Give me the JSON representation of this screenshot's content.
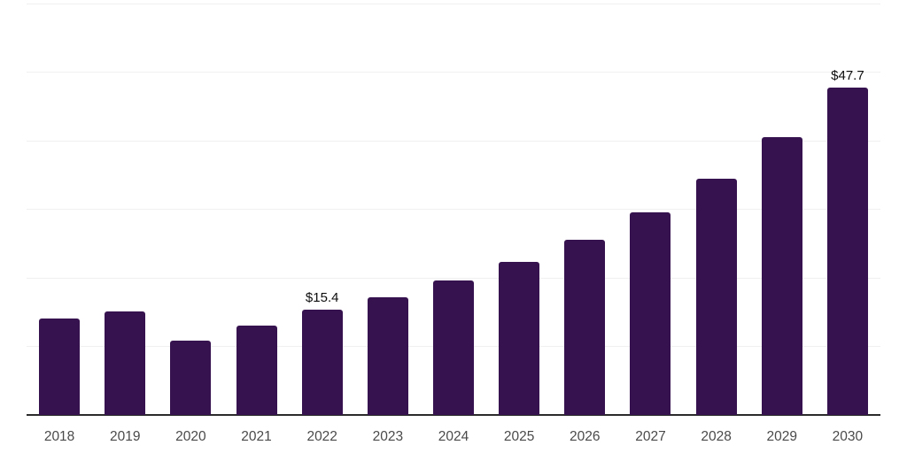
{
  "chart": {
    "background": "#ffffff",
    "bar_color": "#36124e",
    "grid_color": "#f0f0f0",
    "axis_color": "#2b2b2b",
    "tick_label_color": "#4a4a4a",
    "data_label_color": "#0d0d0d"
  },
  "chart_data": {
    "type": "bar",
    "title": "",
    "xlabel": "",
    "ylabel": "",
    "categories": [
      "2018",
      "2019",
      "2020",
      "2021",
      "2022",
      "2023",
      "2024",
      "2025",
      "2026",
      "2027",
      "2028",
      "2029",
      "2030"
    ],
    "values": [
      14.1,
      15.1,
      10.9,
      13.0,
      15.4,
      17.2,
      19.6,
      22.3,
      25.6,
      29.6,
      34.4,
      40.5,
      47.7
    ],
    "data_labels": [
      null,
      null,
      null,
      null,
      "$15.4",
      null,
      null,
      null,
      null,
      null,
      null,
      null,
      "$47.7"
    ],
    "ylim": [
      0,
      60
    ],
    "ytick_interval": 10,
    "y_axis_labels_visible": false,
    "grid": "horizontal",
    "legend": false
  }
}
